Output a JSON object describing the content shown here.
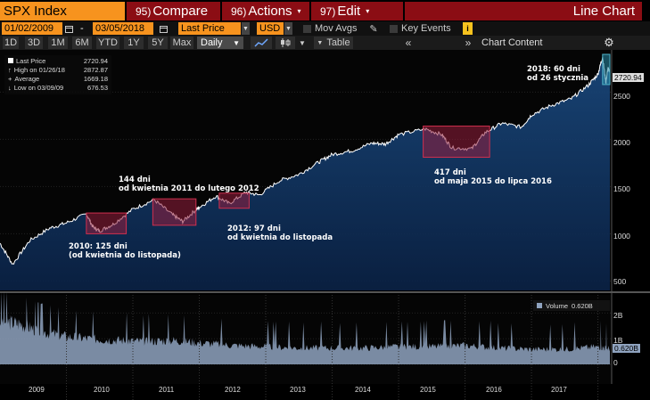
{
  "toolbar": {
    "title": "SPX Index",
    "compare": {
      "num": "95)",
      "label": "Compare"
    },
    "actions": {
      "num": "96)",
      "label": "Actions"
    },
    "edit": {
      "num": "97)",
      "label": "Edit"
    },
    "chart_type": "Line Chart"
  },
  "settings": {
    "start_date": "01/02/2009",
    "separator": "-",
    "end_date": "03/05/2018",
    "price_field": "Last Price",
    "currency": "USD",
    "mov_avgs": "Mov Avgs",
    "key_events": "Key Events",
    "info": "i"
  },
  "periods": {
    "items": [
      "1D",
      "3D",
      "1M",
      "6M",
      "YTD",
      "1Y",
      "5Y",
      "Max"
    ],
    "frequency": "Daily",
    "table": "Table",
    "chart_content": "Chart Content"
  },
  "legend": {
    "rows": [
      {
        "label": "Last Price",
        "value": "2720.94"
      },
      {
        "label": "High on 01/26/18",
        "value": "2872.87"
      },
      {
        "label": "Average",
        "value": "1669.18"
      },
      {
        "label": "Low on 03/09/09",
        "value": "676.53"
      }
    ],
    "volume_label": "Volume",
    "volume_value": "0.620B"
  },
  "annotations": [
    {
      "line1": "2010: 125 dni",
      "line2": "(od kwietnia do listopada)"
    },
    {
      "line1": "144 dni",
      "line2": "od kwietnia 2011 do lutego 2012"
    },
    {
      "line1": "2012: 97 dni",
      "line2": "od kwietnia do listopada"
    },
    {
      "line1": "417 dni",
      "line2": "od maja 2015 do lipca 2016"
    },
    {
      "line1": "2018: 60 dni",
      "line2": "od 26 stycznia"
    }
  ],
  "last_price_tag": "2720.94",
  "volume_tag": "0.620B",
  "colors": {
    "accent_orange": "#f7931e",
    "button_red": "#8b0d14",
    "price_line": "#ffffff",
    "price_fill": "#0e2f5a",
    "volume_fill": "#8fa3bf",
    "highlight_box": "#b0243f"
  },
  "chart_data": [
    {
      "type": "line",
      "title": "",
      "ylim": [
        400,
        2900
      ],
      "yticks": [
        500,
        1000,
        1500,
        2000,
        2500
      ],
      "x_labels": [
        "2009",
        "2010",
        "2011",
        "2012",
        "2013",
        "2014",
        "2015",
        "2016",
        "2017"
      ],
      "series": [
        {
          "name": "Last Price",
          "x": [
            2009.0,
            2009.19,
            2009.45,
            2009.75,
            2010.0,
            2010.3,
            2010.4,
            2010.5,
            2010.7,
            2011.0,
            2011.32,
            2011.6,
            2011.75,
            2011.95,
            2012.0,
            2012.25,
            2012.45,
            2012.7,
            2012.9,
            2013.2,
            2013.5,
            2013.8,
            2014.0,
            2014.3,
            2014.6,
            2014.8,
            2015.0,
            2015.4,
            2015.65,
            2015.8,
            2016.1,
            2016.3,
            2016.55,
            2016.85,
            2017.0,
            2017.3,
            2017.6,
            2017.85,
            2018.0,
            2018.07,
            2018.12,
            2018.15,
            2018.18
          ],
          "values": [
            900,
            677,
            930,
            1060,
            1115,
            1210,
            1070,
            1030,
            1100,
            1260,
            1360,
            1200,
            1130,
            1255,
            1280,
            1400,
            1320,
            1440,
            1410,
            1560,
            1630,
            1760,
            1840,
            1880,
            1960,
            1950,
            2050,
            2110,
            2050,
            1910,
            1900,
            2070,
            2170,
            2130,
            2260,
            2360,
            2430,
            2570,
            2690,
            2873,
            2600,
            2750,
            2721
          ]
        }
      ],
      "highlights": [
        {
          "label": "2010: 125 dni",
          "x_range": [
            2010.3,
            2010.9
          ],
          "y_range": [
            1000,
            1220
          ]
        },
        {
          "label": "144 dni",
          "x_range": [
            2011.3,
            2011.95
          ],
          "y_range": [
            1090,
            1370
          ]
        },
        {
          "label": "2012: 97 dni",
          "x_range": [
            2012.3,
            2012.75
          ],
          "y_range": [
            1270,
            1430
          ]
        },
        {
          "label": "417 dni",
          "x_range": [
            2015.37,
            2016.37
          ],
          "y_range": [
            1810,
            2140
          ]
        },
        {
          "label": "2018: 60 dni",
          "x_range": [
            2018.07,
            2018.18
          ],
          "y_range": [
            2580,
            2900
          ]
        }
      ]
    },
    {
      "type": "area",
      "title": "",
      "ylim": [
        0,
        2.5
      ],
      "yticks": [
        0,
        1,
        2
      ],
      "ytick_labels": [
        "0",
        "1B",
        "2B"
      ],
      "series": [
        {
          "name": "Volume",
          "x": [
            2009.0,
            2009.3,
            2009.6,
            2010.0,
            2010.4,
            2010.8,
            2011.2,
            2011.6,
            2012.0,
            2012.5,
            2013.0,
            2013.5,
            2014.0,
            2014.5,
            2015.0,
            2015.5,
            2016.0,
            2016.5,
            2017.0,
            2017.5,
            2018.0,
            2018.18
          ],
          "values": [
            1.7,
            1.6,
            1.3,
            1.1,
            1.0,
            0.95,
            0.9,
            0.95,
            0.85,
            0.75,
            0.7,
            0.65,
            0.65,
            0.65,
            0.7,
            0.7,
            0.75,
            0.65,
            0.6,
            0.6,
            0.7,
            0.62
          ]
        }
      ]
    }
  ]
}
